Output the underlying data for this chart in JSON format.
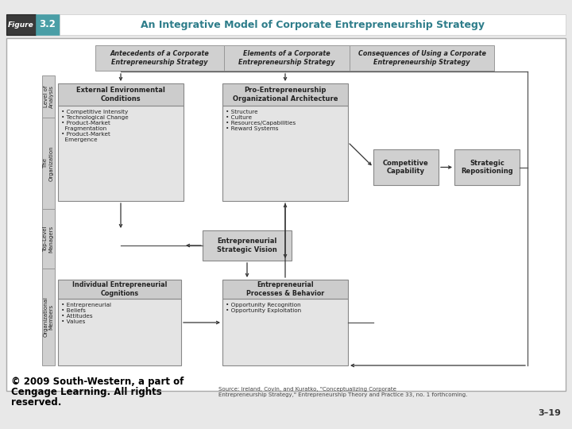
{
  "title": "An Integrative Model of Corporate Entrepreneurship Strategy",
  "figure_label": "Figure",
  "figure_number": "3.2",
  "header_bg": "#4a9ea6",
  "figure_label_bg": "#3a3a3a",
  "title_color": "#2e7d8a",
  "bg_color": "#e8e8e8",
  "white": "#ffffff",
  "box_fill_light": "#e2e2e2",
  "box_fill_mid": "#cccccc",
  "box_fill_dark": "#b8b8b8",
  "box_edge": "#888888",
  "copyright_line1": "© 2009 South-Western, a part of",
  "copyright_line2": "Cengage Learning. All rights",
  "copyright_line3": "reserved.",
  "page_num": "3–19",
  "col_headers": [
    "Antecedents of a Corporate\nEntrepreneurship Strategy",
    "Elements of a Corporate\nEntrepreneurship Strategy",
    "Consequences of Using a Corporate\nEntrepreneurship Strategy"
  ],
  "row_labels": [
    "Level of\nAnalysis",
    "The\nOrganization",
    "Top-Level\nManagers",
    "Organizational\nMembers"
  ],
  "box_ext_env_title": "External Environmental\nConditions",
  "box_ext_env_items": "• Competitive Intensity\n• Technological Change\n• Product-Market\n  Fragmentation\n• Product-Market\n  Emergence",
  "box_pro_title": "Pro-Entrepreneurship\nOrganizational Architecture",
  "box_pro_items": "• Structure\n• Culture\n• Resources/Capabilities\n• Reward Systems",
  "box_vision_title": "Entrepreneurial\nStrategic Vision",
  "box_cognition_title": "Individual Entrepreneurial\nCognitions",
  "box_cognition_items": "• Entrepreneurial\n• Beliefs\n• Attitudes\n• Values",
  "box_process_title": "Entrepreneurial\nProcesses & Behavior",
  "box_process_items": "• Opportunity Recognition\n• Opportunity Exploitation",
  "box_competitive_title": "Competitive\nCapability",
  "box_strategic_title": "Strategic\nRepositioning",
  "source_text": "Source: Ireland, Covin, and Kuratko, \"Conceptualizing Corporate\nEntrepreneurship Strategy,\" Entrepreneurship Theory and Practice 33, no. 1 forthcoming."
}
